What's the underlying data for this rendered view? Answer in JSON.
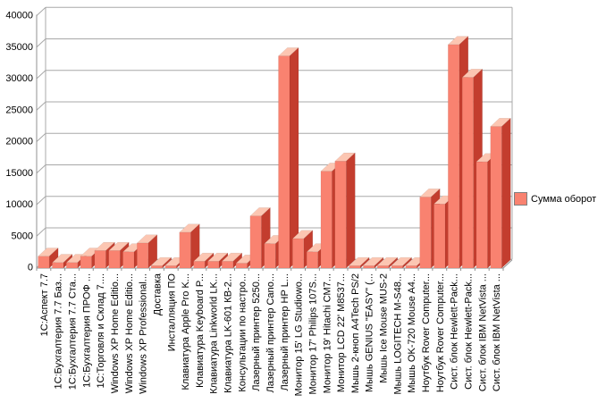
{
  "chart_data": {
    "type": "bar",
    "projection": "3d",
    "title": "",
    "xlabel": "",
    "ylabel": "",
    "ylim": [
      0,
      40000
    ],
    "ytick_interval": 5000,
    "grid": true,
    "legend": {
      "label": "Сумма оборот",
      "position": "right"
    },
    "categories": [
      "1С:Аспект 7.7",
      "1С:Бухгалтерия 7.7 Баз...",
      "1С:Бухгалтерия 7.7 Ста...",
      "1С:Бухгалтерия ПРОФ ...",
      "1С:Торговля и Склад 7....",
      "Windows XP Home Editio...",
      "Windows XP Home Editio...",
      "Windows XP Professional...",
      "Доставка",
      "Инсталляция ПО",
      "Клавиатура Apple Pro K...",
      "Клавиатура Keyboard P...",
      "Клавиатура Linkworld LK...",
      "Клавиатура LK-601 КВ-2...",
      "Консультации по настро...",
      "Лазерный принтер 5250...",
      "Лазерный принтер Cano...",
      "Лазерный принтер HP L...",
      "Монитор 15' LG Studiowo...",
      "Монитор 17' Philips 107S...",
      "Монитор 19' Hitachi CM7...",
      "Монитор LCD 22' M8537...",
      "Мышь 2-кноп A4Tech PS/2",
      "Мышь GENIUS \"EASY\" (...",
      "Мышь Ice Mouse MUS-2",
      "Мышь LOGITECH M-S48...",
      "Мышь OK-720 Mouse A4...",
      "Ноутбук Rover Computer...",
      "Ноутбук Rover Computer...",
      "Сист. блок Hewlett-Pack...",
      "Сист. блок Hewlett-Pack...",
      "Сист. блок IBM NetVista ...",
      "Сист. блок IBM NetVista ..."
    ],
    "series": [
      {
        "name": "Сумма оборот",
        "values": [
          1800,
          800,
          800,
          1800,
          2700,
          2700,
          2500,
          3900,
          300,
          300,
          5600,
          1000,
          1000,
          1000,
          700,
          8200,
          3800,
          33600,
          4600,
          2500,
          15300,
          16900,
          300,
          300,
          300,
          300,
          300,
          11200,
          10100,
          35400,
          30200,
          16800,
          22400
        ]
      }
    ],
    "colors": {
      "bar_front": "#f98270",
      "bar_top": "#fcc6b2",
      "bar_side": "#c33d2e",
      "gridline": "#a8a8a8",
      "axis": "#909090",
      "text": "#000000",
      "legend_border": "#808080",
      "background": "#ffffff"
    }
  }
}
